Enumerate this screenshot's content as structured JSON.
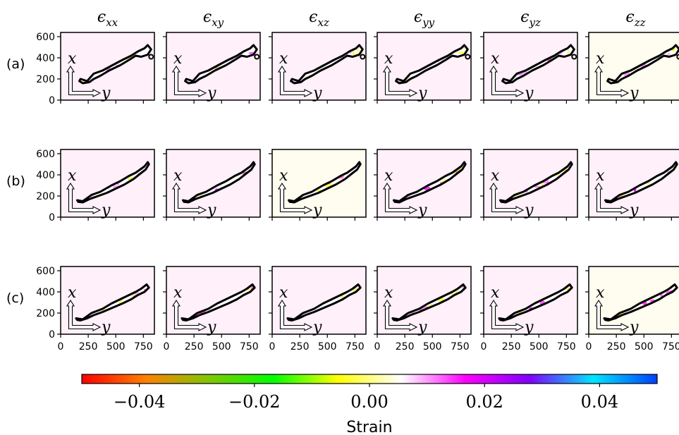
{
  "chart_data": {
    "type": "heatmap",
    "columns": [
      {
        "symbol": "ϵ",
        "sub": "xx"
      },
      {
        "symbol": "ϵ",
        "sub": "xy"
      },
      {
        "symbol": "ϵ",
        "sub": "xz"
      },
      {
        "symbol": "ϵ",
        "sub": "yy"
      },
      {
        "symbol": "ϵ",
        "sub": "yz"
      },
      {
        "symbol": "ϵ",
        "sub": "zz"
      }
    ],
    "rows": [
      "(a)",
      "(b)",
      "(c)"
    ],
    "x_axis": {
      "range": [
        0,
        850
      ],
      "ticks": [
        0,
        250,
        500,
        750
      ],
      "tick_labels": [
        "0",
        "250",
        "500",
        "750"
      ]
    },
    "y_axis": {
      "range": [
        0,
        640
      ],
      "ticks": [
        0,
        200,
        400,
        600
      ],
      "tick_labels": [
        "0",
        "200",
        "400",
        "600"
      ]
    },
    "inset_axes": {
      "vertical": "x",
      "horizontal": "y"
    },
    "colorbar": {
      "label": "Strain",
      "range": [
        -0.05,
        0.05
      ],
      "ticks": [
        -0.04,
        -0.02,
        0.0,
        0.02,
        0.04
      ],
      "tick_labels": [
        "−0.04",
        "−0.02",
        "0.00",
        "0.02",
        "0.04"
      ],
      "colormap": "gist_rainbow",
      "colors": [
        "#ff0000",
        "#ff8000",
        "#7fc700",
        "#00ff00",
        "#ffff00",
        "#ffffff",
        "#ff00ff",
        "#8000ff",
        "#00e5ff",
        "#0040ff"
      ]
    },
    "background_tints": [
      [
        "#fff0fa",
        "#fff0fa",
        "#fff0fa",
        "#fff0fa",
        "#fff0fa",
        "#fffdf0"
      ],
      [
        "#fff0fa",
        "#fff0fa",
        "#fffdf0",
        "#fff0fa",
        "#fff0fa",
        "#fff0fa"
      ],
      [
        "#fff0fa",
        "#fff0fa",
        "#fff0fa",
        "#fff0fa",
        "#fff0fa",
        "#fffdf0"
      ]
    ],
    "grain_outlines": {
      "a": [
        [
          180,
          200
        ],
        [
          240,
          180
        ],
        [
          300,
          250
        ],
        [
          380,
          280
        ],
        [
          470,
          330
        ],
        [
          560,
          380
        ],
        [
          640,
          420
        ],
        [
          700,
          460
        ],
        [
          760,
          490
        ],
        [
          790,
          520
        ],
        [
          820,
          480
        ],
        [
          790,
          430
        ],
        [
          730,
          410
        ],
        [
          680,
          420
        ],
        [
          620,
          380
        ],
        [
          540,
          330
        ],
        [
          440,
          280
        ],
        [
          360,
          230
        ],
        [
          300,
          200
        ],
        [
          260,
          170
        ],
        [
          200,
          160
        ],
        [
          170,
          180
        ]
      ],
      "b": [
        [
          150,
          160
        ],
        [
          200,
          150
        ],
        [
          280,
          210
        ],
        [
          360,
          240
        ],
        [
          460,
          300
        ],
        [
          540,
          340
        ],
        [
          620,
          390
        ],
        [
          680,
          420
        ],
        [
          720,
          450
        ],
        [
          760,
          480
        ],
        [
          790,
          520
        ],
        [
          800,
          500
        ],
        [
          770,
          450
        ],
        [
          720,
          410
        ],
        [
          660,
          360
        ],
        [
          580,
          310
        ],
        [
          500,
          270
        ],
        [
          420,
          230
        ],
        [
          340,
          200
        ],
        [
          260,
          170
        ],
        [
          200,
          140
        ],
        [
          160,
          145
        ]
      ],
      "c": [
        [
          140,
          150
        ],
        [
          200,
          140
        ],
        [
          280,
          200
        ],
        [
          380,
          240
        ],
        [
          460,
          290
        ],
        [
          540,
          330
        ],
        [
          620,
          370
        ],
        [
          680,
          400
        ],
        [
          730,
          430
        ],
        [
          780,
          470
        ],
        [
          800,
          440
        ],
        [
          760,
          400
        ],
        [
          700,
          370
        ],
        [
          640,
          330
        ],
        [
          560,
          290
        ],
        [
          470,
          250
        ],
        [
          380,
          210
        ],
        [
          300,
          180
        ],
        [
          240,
          150
        ],
        [
          180,
          130
        ],
        [
          150,
          135
        ]
      ]
    }
  }
}
